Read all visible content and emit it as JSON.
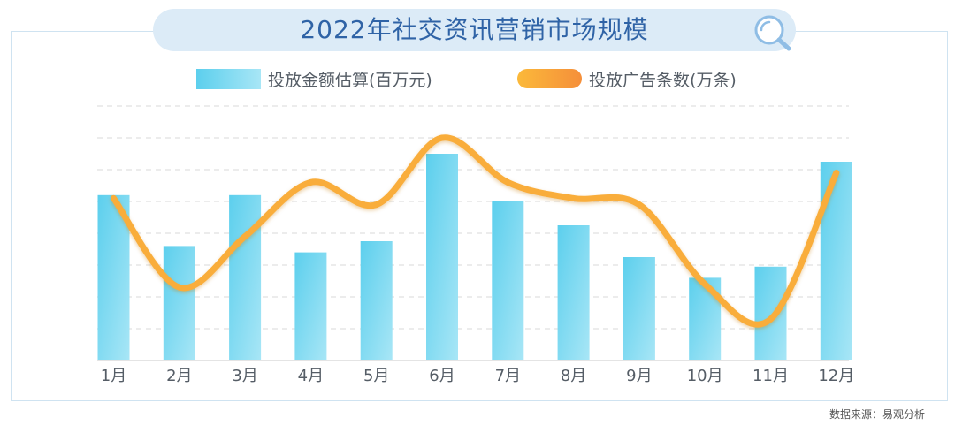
{
  "title": "2022年社交资讯营销市场规模",
  "legend": {
    "bar_label": "投放金额估算(百万元)",
    "line_label": "投放广告条数(万条)"
  },
  "source": "数据来源：易观分析",
  "icons": {
    "title_icon": "search-icon"
  },
  "colors": {
    "title_text": "#2f63a6",
    "title_pill": "#dcebf7",
    "bar_top": "#5ccfed",
    "bar_light": "#a8e6f6",
    "line": "#f9ad3a",
    "grid": "#d8d8d8",
    "axis_label": "#555d66"
  },
  "chart_data": {
    "type": "bar+line",
    "categories": [
      "1月",
      "2月",
      "3月",
      "4月",
      "5月",
      "6月",
      "7月",
      "8月",
      "9月",
      "10月",
      "11月",
      "12月"
    ],
    "series": [
      {
        "name": "投放金额估算(百万元)",
        "type": "bar",
        "values": [
          5.2,
          3.6,
          5.2,
          3.4,
          3.75,
          6.5,
          5.0,
          4.25,
          3.25,
          2.6,
          2.95,
          6.25
        ]
      },
      {
        "name": "投放广告条数(万条)",
        "type": "line",
        "smooth": true,
        "values": [
          5.1,
          2.3,
          3.9,
          5.6,
          4.9,
          7.0,
          5.6,
          5.1,
          4.9,
          2.4,
          1.3,
          5.9
        ]
      }
    ],
    "ylim": [
      0,
      8
    ],
    "y_ticks_shown": false,
    "grid": "horizontal dashed",
    "legend_position": "top"
  }
}
